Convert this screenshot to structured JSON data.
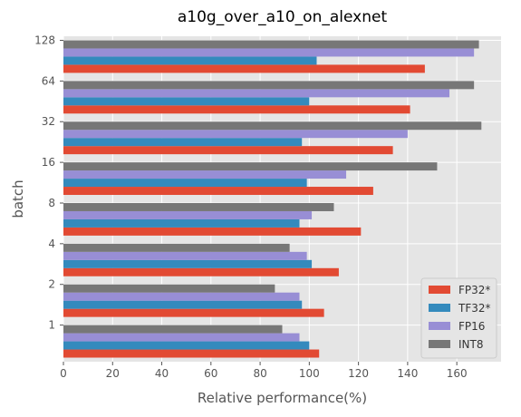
{
  "chart_data": {
    "type": "bar",
    "orientation": "horizontal",
    "title": "a10g_over_a10_on_alexnet",
    "xlabel": "Relative performance(%)",
    "ylabel": "batch",
    "categories": [
      "1",
      "2",
      "4",
      "8",
      "16",
      "32",
      "64",
      "128"
    ],
    "xlim": [
      0,
      178
    ],
    "xticks": [
      0,
      20,
      40,
      60,
      80,
      100,
      120,
      140,
      160
    ],
    "grid": true,
    "legend_position": "lower right",
    "series": [
      {
        "name": "FP32*",
        "color": "#E24A33",
        "values": [
          104,
          106,
          112,
          121,
          126,
          134,
          141,
          147
        ]
      },
      {
        "name": "TF32*",
        "color": "#348ABD",
        "values": [
          100,
          97,
          101,
          96,
          99,
          97,
          100,
          103
        ]
      },
      {
        "name": "FP16",
        "color": "#988ED5",
        "values": [
          96,
          96,
          99,
          101,
          115,
          140,
          157,
          167
        ]
      },
      {
        "name": "INT8",
        "color": "#777777",
        "values": [
          89,
          86,
          92,
          110,
          152,
          170,
          167,
          169
        ]
      }
    ]
  }
}
